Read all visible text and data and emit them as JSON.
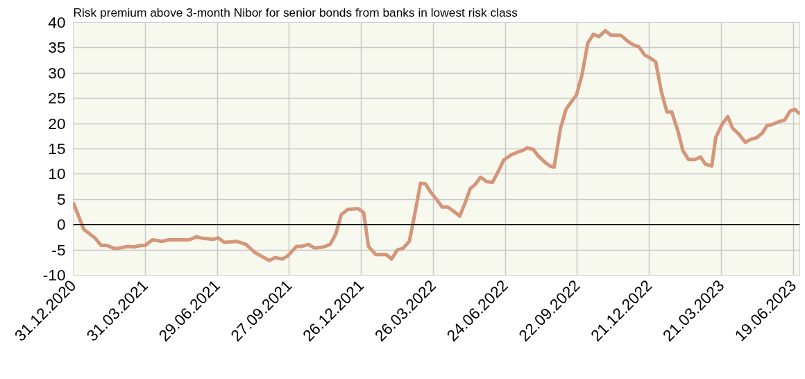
{
  "chart_data": {
    "type": "line",
    "title": "Risk premium above 3-month Nibor for senior bonds from banks in lowest risk class",
    "x": [
      "2020-12-31",
      "2021-01-08",
      "2021-01-13",
      "2021-01-27",
      "2021-02-04",
      "2021-02-11",
      "2021-02-20",
      "2021-02-25",
      "2021-03-09",
      "2021-03-17",
      "2021-03-26",
      "2021-03-31",
      "2021-04-09",
      "2021-04-21",
      "2021-04-29",
      "2021-05-25",
      "2021-06-03",
      "2021-06-11",
      "2021-06-24",
      "2021-06-30",
      "2021-07-08",
      "2021-07-23",
      "2021-08-04",
      "2021-08-15",
      "2021-09-02",
      "2021-09-09",
      "2021-09-18",
      "2021-09-25",
      "2021-10-06",
      "2021-10-12",
      "2021-10-21",
      "2021-10-28",
      "2021-11-09",
      "2021-11-17",
      "2021-11-24",
      "2021-12-01",
      "2021-12-09",
      "2021-12-22",
      "2021-12-29",
      "2022-01-04",
      "2022-01-13",
      "2022-01-26",
      "2022-02-02",
      "2022-02-09",
      "2022-02-16",
      "2022-02-24",
      "2022-03-02",
      "2022-03-10",
      "2022-03-16",
      "2022-03-23",
      "2022-03-30",
      "2022-04-06",
      "2022-04-13",
      "2022-04-21",
      "2022-04-28",
      "2022-05-05",
      "2022-05-11",
      "2022-05-17",
      "2022-05-24",
      "2022-06-01",
      "2022-06-08",
      "2022-06-16",
      "2022-06-22",
      "2022-07-01",
      "2022-07-10",
      "2022-07-16",
      "2022-07-21",
      "2022-07-29",
      "2022-08-04",
      "2022-08-13",
      "2022-08-19",
      "2022-08-24",
      "2022-09-01",
      "2022-09-08",
      "2022-09-21",
      "2022-09-28",
      "2022-10-05",
      "2022-10-12",
      "2022-10-19",
      "2022-10-27",
      "2022-11-03",
      "2022-11-15",
      "2022-11-24",
      "2022-12-01",
      "2022-12-08",
      "2022-12-15",
      "2022-12-22",
      "2022-12-29",
      "2023-01-05",
      "2023-01-12",
      "2023-01-18",
      "2023-01-26",
      "2023-02-01",
      "2023-02-08",
      "2023-02-16",
      "2023-02-23",
      "2023-03-01",
      "2023-03-09",
      "2023-03-14",
      "2023-03-22",
      "2023-03-29",
      "2023-04-04",
      "2023-04-12",
      "2023-04-20",
      "2023-04-27",
      "2023-05-04",
      "2023-05-11",
      "2023-05-17",
      "2023-05-23",
      "2023-06-01",
      "2023-06-08",
      "2023-06-15",
      "2023-06-21",
      "2023-06-27"
    ],
    "series": [
      {
        "color": "#d4967a",
        "values": [
          4.4,
          1.2,
          -0.9,
          -2.6,
          -4.1,
          -4.1,
          -4.7,
          -4.7,
          -4.3,
          -4.4,
          -4.1,
          -4.1,
          -3.0,
          -3.3,
          -3.0,
          -3.0,
          -2.4,
          -2.7,
          -2.9,
          -2.6,
          -3.5,
          -3.3,
          -3.9,
          -5.5,
          -7.1,
          -6.5,
          -6.8,
          -6.2,
          -4.3,
          -4.3,
          -3.9,
          -4.6,
          -4.4,
          -3.9,
          -1.9,
          2.0,
          3.0,
          3.2,
          2.4,
          -4.3,
          -5.9,
          -5.9,
          -6.8,
          -5.0,
          -4.7,
          -3.3,
          1.4,
          8.2,
          8.1,
          6.4,
          5.0,
          3.5,
          3.5,
          2.6,
          1.7,
          4.4,
          7.1,
          7.9,
          9.4,
          8.5,
          8.4,
          10.8,
          12.8,
          13.8,
          14.4,
          14.7,
          15.2,
          14.9,
          13.6,
          12.3,
          11.6,
          11.4,
          19.1,
          22.9,
          25.7,
          29.8,
          35.9,
          37.7,
          37.2,
          38.4,
          37.5,
          37.5,
          36.3,
          35.6,
          35.2,
          33.6,
          33.0,
          32.2,
          26.3,
          22.3,
          22.3,
          18.4,
          14.6,
          12.9,
          12.9,
          13.4,
          12.0,
          11.6,
          17.3,
          19.9,
          21.4,
          19.1,
          17.9,
          16.3,
          16.9,
          17.2,
          18.1,
          19.6,
          19.8,
          20.4,
          20.7,
          22.5,
          22.8,
          21.9
        ]
      }
    ],
    "xlim": [
      "2020-12-31",
      "2023-06-27"
    ],
    "xticks": [
      {
        "value": "2020-12-31",
        "label": "31.12.2020"
      },
      {
        "value": "2021-03-31",
        "label": "31.03.2021"
      },
      {
        "value": "2021-06-29",
        "label": "29.06.2021"
      },
      {
        "value": "2021-09-27",
        "label": "27.09.2021"
      },
      {
        "value": "2021-12-26",
        "label": "26.12.2021"
      },
      {
        "value": "2022-03-26",
        "label": "26.03.2022"
      },
      {
        "value": "2022-06-24",
        "label": "24.06.2022"
      },
      {
        "value": "2022-09-22",
        "label": "22.09.2022"
      },
      {
        "value": "2022-12-21",
        "label": "21.12.2022"
      },
      {
        "value": "2023-03-21",
        "label": "21.03.2023"
      },
      {
        "value": "2023-06-19",
        "label": "19.06.2023"
      }
    ],
    "ylim": [
      -10,
      40
    ],
    "yticks": [
      -10,
      -5,
      0,
      5,
      10,
      15,
      20,
      25,
      30,
      35,
      40
    ],
    "ref_lines": [
      {
        "axis": "y",
        "value": 0,
        "color": "#000000"
      }
    ],
    "grid": true,
    "marker": "none",
    "line_style": "solid"
  }
}
